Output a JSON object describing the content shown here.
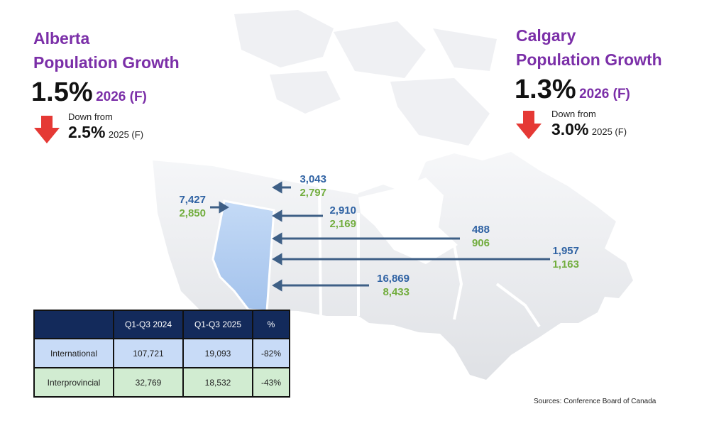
{
  "alberta": {
    "title_line1": "Alberta",
    "title_line2": "Population Growth",
    "value": "1.5%",
    "forecast": "2026 (F)",
    "down_from": "Down from",
    "previous_value": "2.5%",
    "previous_forecast": "2025 (F)"
  },
  "calgary": {
    "title_line1": "Calgary",
    "title_line2": "Population Growth",
    "value": "1.3%",
    "forecast": "2026 (F)",
    "down_from": "Down from",
    "previous_value": "3.0%",
    "previous_forecast": "2025 (F)"
  },
  "flows": [
    {
      "name": "british-columbia",
      "v1": "7,427",
      "v2": "2,850"
    },
    {
      "name": "territories",
      "v1": "3,043",
      "v2": "2,797"
    },
    {
      "name": "saskatchewan",
      "v1": "2,910",
      "v2": "2,169"
    },
    {
      "name": "quebec",
      "v1": "488",
      "v2": "906"
    },
    {
      "name": "atlantic",
      "v1": "1,957",
      "v2": "1,163"
    },
    {
      "name": "ontario",
      "v1": "16,869",
      "v2": "8,433"
    }
  ],
  "table": {
    "headers": [
      "",
      "Q1-Q3 2024",
      "Q1-Q3 2025",
      "%"
    ],
    "rows": [
      [
        "International",
        "107,721",
        "19,093",
        "-82%"
      ],
      [
        "Interprovincial",
        "32,769",
        "18,532",
        "-43%"
      ]
    ]
  },
  "sources": "Sources: Conference Board of Canada",
  "colors": {
    "accent_purple": "#7b2fa8",
    "flow_blue": "#2f62a3",
    "flow_green": "#72ad3e",
    "arrow_red": "#e53935",
    "alberta_fill": "#a9c8ef",
    "table_header": "#132a5b"
  }
}
